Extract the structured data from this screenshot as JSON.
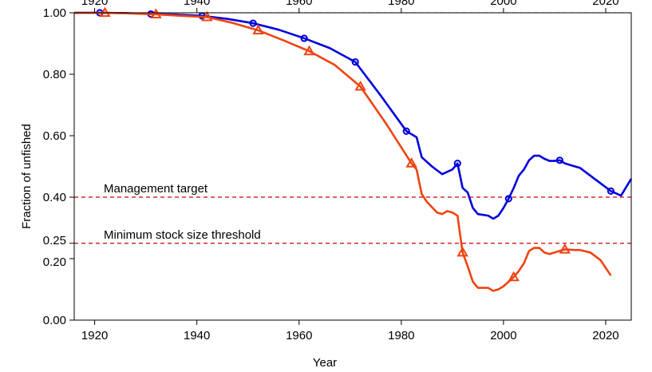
{
  "chart_data": {
    "type": "line",
    "title": "",
    "xlabel": "Year",
    "ylabel": "Fraction of unfished",
    "xlim": [
      1916,
      2025
    ],
    "ylim": [
      0,
      1.0
    ],
    "x_ticks": [
      1920,
      1940,
      1960,
      1980,
      2000,
      2020
    ],
    "x_tick_labels": [
      "1920",
      "1940",
      "1960",
      "1980",
      "2000",
      "2020"
    ],
    "y_ticks": [
      0,
      0.2,
      0.25,
      0.4,
      0.6,
      0.8,
      1.0
    ],
    "y_tick_labels": [
      "0.00",
      "0.20",
      "0.25",
      "0.40",
      "0.60",
      "0.80",
      "1.00"
    ],
    "top_axis": true,
    "grid": false,
    "legend": "none",
    "reference_lines": [
      {
        "y": 1.0,
        "label": "",
        "color": "#bbbbbb",
        "style": "dashed"
      },
      {
        "y": 0.4,
        "label": "Management target",
        "color": "#cc0000",
        "style": "dashed"
      },
      {
        "y": 0.25,
        "label": "Minimum stock size threshold",
        "color": "#cc0000",
        "style": "dashed"
      }
    ],
    "series": [
      {
        "color": "#0000dd",
        "marker": "circle",
        "x": [
          1916,
          1921,
          1926,
          1931,
          1936,
          1941,
          1946,
          1951,
          1956,
          1961,
          1966,
          1971,
          1976,
          1981,
          1982,
          1983,
          1984,
          1986,
          1988,
          1990,
          1991,
          1992,
          1993,
          1994,
          1995,
          1997,
          1998,
          1999,
          2000,
          2001,
          2002,
          2003,
          2004,
          2005,
          2006,
          2007,
          2008,
          2009,
          2010,
          2011,
          2012,
          2013,
          2015,
          2017,
          2019,
          2021,
          2023,
          2025
        ],
        "y": [
          1.0,
          1.0,
          0.999,
          0.996,
          0.994,
          0.99,
          0.98,
          0.966,
          0.945,
          0.917,
          0.885,
          0.84,
          0.73,
          0.615,
          0.605,
          0.595,
          0.53,
          0.5,
          0.475,
          0.49,
          0.51,
          0.43,
          0.415,
          0.365,
          0.345,
          0.34,
          0.33,
          0.34,
          0.365,
          0.395,
          0.43,
          0.47,
          0.49,
          0.52,
          0.535,
          0.535,
          0.525,
          0.518,
          0.518,
          0.52,
          0.51,
          0.505,
          0.495,
          0.47,
          0.445,
          0.42,
          0.405,
          0.46
        ],
        "marker_x": [
          1921,
          1931,
          1941,
          1951,
          1961,
          1971,
          1981,
          1991,
          2001,
          2011,
          2021
        ],
        "marker_y": [
          1.0,
          0.996,
          0.99,
          0.966,
          0.917,
          0.84,
          0.615,
          0.51,
          0.395,
          0.52,
          0.42
        ]
      },
      {
        "color": "#ee4411",
        "marker": "triangle",
        "x": [
          1916,
          1922,
          1927,
          1932,
          1937,
          1942,
          1947,
          1952,
          1957,
          1962,
          1967,
          1972,
          1977,
          1982,
          1983,
          1984,
          1985,
          1987,
          1988,
          1989,
          1990,
          1991,
          1992,
          1993,
          1994,
          1995,
          1996,
          1997,
          1998,
          1999,
          2000,
          2001,
          2002,
          2003,
          2004,
          2005,
          2006,
          2007,
          2008,
          2009,
          2010,
          2012,
          2014,
          2015,
          2017,
          2019,
          2021
        ],
        "y": [
          1.0,
          1.0,
          0.998,
          0.995,
          0.99,
          0.986,
          0.967,
          0.943,
          0.91,
          0.875,
          0.83,
          0.76,
          0.64,
          0.51,
          0.49,
          0.41,
          0.385,
          0.35,
          0.345,
          0.355,
          0.35,
          0.34,
          0.22,
          0.175,
          0.125,
          0.105,
          0.105,
          0.105,
          0.095,
          0.1,
          0.11,
          0.125,
          0.14,
          0.16,
          0.185,
          0.225,
          0.235,
          0.235,
          0.22,
          0.215,
          0.22,
          0.23,
          0.228,
          0.228,
          0.22,
          0.195,
          0.145
        ],
        "marker_x": [
          1922,
          1932,
          1942,
          1952,
          1962,
          1972,
          1982,
          1992,
          2002,
          2012
        ],
        "marker_y": [
          1.0,
          0.995,
          0.986,
          0.943,
          0.875,
          0.76,
          0.51,
          0.22,
          0.14,
          0.23
        ]
      }
    ]
  }
}
